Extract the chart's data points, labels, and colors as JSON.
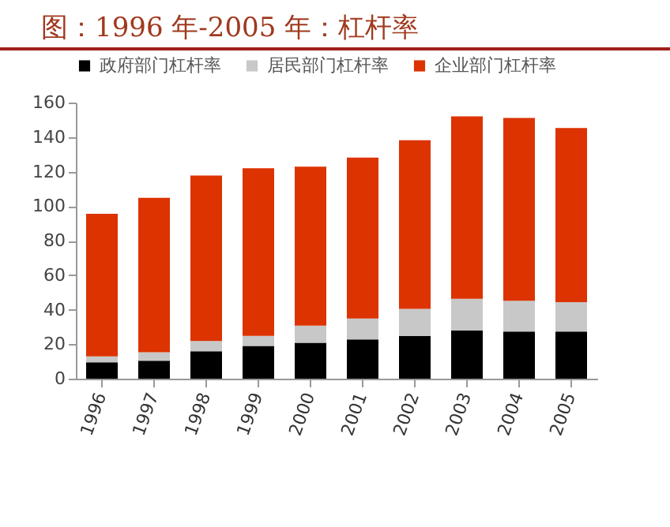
{
  "chart_data": {
    "type": "bar",
    "title": "图：1996 年-2005 年：杠杆率",
    "stacked": true,
    "categories": [
      "1996",
      "1997",
      "1998",
      "1999",
      "2000",
      "2001",
      "2002",
      "2003",
      "2004",
      "2005"
    ],
    "series": [
      {
        "name": "政府部门杠杆率",
        "color": "#000000",
        "values": [
          9.5,
          10.4,
          15.9,
          19,
          20.8,
          22.7,
          24.8,
          27.9,
          27.3,
          27.3
        ]
      },
      {
        "name": "居民部门杠杆率",
        "color": "#c8c8c8",
        "values": [
          3.4,
          4.9,
          5.9,
          5.8,
          9.9,
          12.2,
          15.7,
          18.4,
          17.8,
          17.1
        ]
      },
      {
        "name": "企业部门杠杆率",
        "color": "#dc3300",
        "values": [
          82.7,
          89.5,
          95.9,
          97.2,
          92.2,
          93.2,
          97.7,
          105.7,
          106,
          100.9
        ]
      }
    ],
    "ylim": [
      0,
      160
    ],
    "yticks": [
      0,
      20,
      40,
      60,
      80,
      100,
      120,
      140,
      160
    ],
    "legend": "top"
  }
}
